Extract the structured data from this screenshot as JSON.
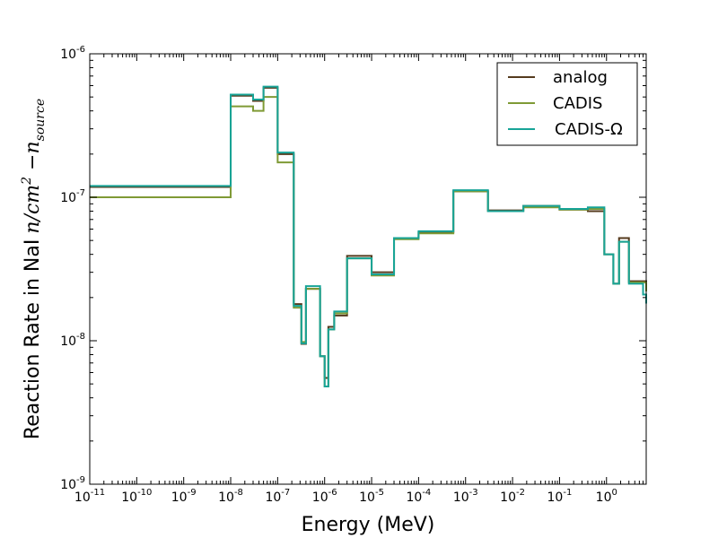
{
  "chart_data": {
    "type": "line",
    "title": "",
    "xlabel": "Energy (MeV)",
    "ylabel": {
      "prefix": "Reaction Rate in NaI",
      "unit": "n/cm",
      "unit_exp": "2",
      "unit_tail": " −n",
      "unit_sub": "source"
    },
    "xscale": "log",
    "yscale": "log",
    "xlim": [
      1e-11,
      7
    ],
    "ylim": [
      1e-09,
      1e-06
    ],
    "x_tick_labels": [
      {
        "base": "10",
        "exp": "-11",
        "value": 1e-11
      },
      {
        "base": "10",
        "exp": "-10",
        "value": 1e-10
      },
      {
        "base": "10",
        "exp": "-9",
        "value": 1e-09
      },
      {
        "base": "10",
        "exp": "-8",
        "value": 1e-08
      },
      {
        "base": "10",
        "exp": "-7",
        "value": 1e-07
      },
      {
        "base": "10",
        "exp": "-6",
        "value": 1e-06
      },
      {
        "base": "10",
        "exp": "-5",
        "value": 1e-05
      },
      {
        "base": "10",
        "exp": "-4",
        "value": 0.0001
      },
      {
        "base": "10",
        "exp": "-3",
        "value": 0.001
      },
      {
        "base": "10",
        "exp": "-2",
        "value": 0.01
      },
      {
        "base": "10",
        "exp": "-1",
        "value": 0.1
      },
      {
        "base": "10",
        "exp": "0",
        "value": 1
      }
    ],
    "y_tick_labels": [
      {
        "base": "10",
        "exp": "-9",
        "value": 1e-09
      },
      {
        "base": "10",
        "exp": "-8",
        "value": 1e-08
      },
      {
        "base": "10",
        "exp": "-7",
        "value": 1e-07
      },
      {
        "base": "10",
        "exp": "-6",
        "value": 1e-06
      }
    ],
    "legend_position": "top-right",
    "bin_edges": [
      1e-11,
      1e-08,
      3e-08,
      5e-08,
      1e-07,
      2.2e-07,
      3.2e-07,
      4e-07,
      8e-07,
      1e-06,
      1.2e-06,
      1.6e-06,
      3e-06,
      1e-05,
      3e-05,
      0.0001,
      0.00055,
      0.003,
      0.017,
      0.1,
      0.4,
      0.9,
      1.4,
      1.85,
      3,
      6,
      7
    ],
    "series": [
      {
        "name": "analog",
        "color": "#553b1e",
        "values": [
          1.18e-07,
          5.1e-07,
          4.7e-07,
          5.8e-07,
          2e-07,
          1.8e-08,
          9.5e-09,
          2.3e-08,
          7.8e-09,
          5.5e-09,
          1.25e-08,
          1.5e-08,
          3.9e-08,
          3e-08,
          5.2e-08,
          5.7e-08,
          1.1e-07,
          8.1e-08,
          8.7e-08,
          8.2e-08,
          8e-08,
          4e-08,
          2.5e-08,
          5.2e-08,
          2.6e-08,
          2.6e-08
        ]
      },
      {
        "name": "CADIS",
        "color": "#7f9a35",
        "values": [
          1e-07,
          4.3e-07,
          4e-07,
          5e-07,
          1.75e-07,
          1.7e-08,
          9.8e-09,
          2.3e-08,
          7.8e-09,
          4.8e-09,
          1.2e-08,
          1.55e-08,
          3.75e-08,
          2.85e-08,
          5.1e-08,
          5.6e-08,
          1.1e-07,
          8e-08,
          8.5e-08,
          8.2e-08,
          8.3e-08,
          4e-08,
          2.5e-08,
          4.9e-08,
          2.55e-08,
          2.55e-08
        ]
      },
      {
        "name": "CADIS-Ω",
        "color": "#17a497",
        "values": [
          1.2e-07,
          5.2e-07,
          4.8e-07,
          5.9e-07,
          2.05e-07,
          1.75e-08,
          9.6e-09,
          2.4e-08,
          7.8e-09,
          4.8e-09,
          1.2e-08,
          1.6e-08,
          3.75e-08,
          2.9e-08,
          5.2e-08,
          5.8e-08,
          1.12e-07,
          8e-08,
          8.7e-08,
          8.3e-08,
          8.5e-08,
          4e-08,
          2.5e-08,
          4.9e-08,
          2.5e-08,
          2.1e-08
        ]
      }
    ]
  }
}
